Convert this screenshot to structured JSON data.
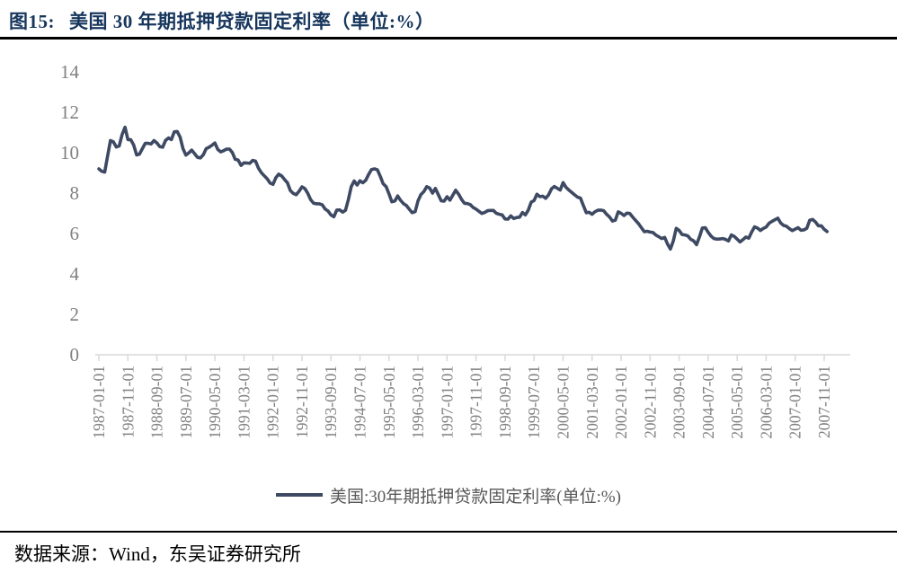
{
  "header": {
    "figure_prefix": "图15:",
    "title": "美国 30 年期抵押贷款固定利率（单位:%）",
    "title_color": "#17365D"
  },
  "legend": {
    "label": "美国:30年期抵押贷款固定利率(单位:%)",
    "swatch_color": "#3E4A63"
  },
  "footer": {
    "source": "数据来源：Wind，东吴证券研究所"
  },
  "chart_data": {
    "type": "line",
    "title": "美国 30 年期抵押贷款固定利率（单位:%）",
    "xlabel": "",
    "ylabel": "",
    "ylim": [
      0,
      14
    ],
    "yticks": [
      0,
      2,
      4,
      6,
      8,
      10,
      12,
      14
    ],
    "grid": false,
    "legend_position": "bottom",
    "line_color": "#3E4A63",
    "axis_text_color": "#808080",
    "axis_line_color": "#D9D9D9",
    "x_tick_labels": [
      "1987-01-01",
      "1987-11-01",
      "1988-09-01",
      "1989-07-01",
      "1990-05-01",
      "1991-03-01",
      "1992-01-01",
      "1992-11-01",
      "1993-09-01",
      "1994-07-01",
      "1995-05-01",
      "1996-03-01",
      "1997-01-01",
      "1997-11-01",
      "1998-09-01",
      "1999-07-01",
      "2000-05-01",
      "2001-03-01",
      "2002-01-01",
      "2002-11-01",
      "2003-09-01",
      "2004-07-01",
      "2005-05-01",
      "2006-03-01",
      "2007-01-01",
      "2007-11-01"
    ],
    "months_per_tick": 10,
    "series": [
      {
        "name": "美国:30年期抵押贷款固定利率(单位:%)",
        "start": "1987-01",
        "end": "2007-12",
        "frequency": "monthly",
        "values": [
          9.2,
          9.08,
          9.04,
          9.83,
          10.6,
          10.54,
          10.28,
          10.33,
          10.89,
          11.26,
          10.65,
          10.64,
          10.38,
          9.89,
          9.93,
          10.2,
          10.46,
          10.46,
          10.43,
          10.6,
          10.48,
          10.3,
          10.27,
          10.61,
          10.73,
          10.65,
          11.03,
          11.05,
          10.77,
          10.2,
          9.88,
          9.99,
          10.13,
          9.95,
          9.77,
          9.74,
          9.9,
          10.2,
          10.27,
          10.37,
          10.48,
          10.16,
          10.04,
          10.1,
          10.18,
          10.18,
          10.01,
          9.67,
          9.64,
          9.37,
          9.5,
          9.49,
          9.47,
          9.62,
          9.58,
          9.24,
          9.01,
          8.86,
          8.71,
          8.5,
          8.43,
          8.76,
          8.94,
          8.85,
          8.67,
          8.51,
          8.13,
          7.98,
          7.92,
          8.09,
          8.31,
          8.22,
          7.99,
          7.68,
          7.5,
          7.47,
          7.47,
          7.42,
          7.21,
          7.11,
          6.92,
          6.83,
          7.16,
          7.17,
          7.06,
          7.15,
          7.68,
          8.32,
          8.6,
          8.4,
          8.61,
          8.51,
          8.64,
          8.93,
          9.17,
          9.2,
          9.15,
          8.83,
          8.46,
          8.32,
          7.96,
          7.57,
          7.61,
          7.86,
          7.64,
          7.48,
          7.38,
          7.2,
          7.03,
          7.08,
          7.62,
          7.93,
          8.07,
          8.32,
          8.25,
          8.0,
          8.23,
          7.92,
          7.62,
          7.6,
          7.82,
          7.65,
          7.9,
          8.14,
          7.94,
          7.69,
          7.5,
          7.48,
          7.43,
          7.29,
          7.21,
          7.1,
          6.99,
          7.04,
          7.13,
          7.14,
          7.14,
          7.0,
          6.95,
          6.92,
          6.72,
          6.71,
          6.87,
          6.74,
          6.79,
          6.81,
          7.04,
          6.92,
          7.15,
          7.55,
          7.63,
          7.94,
          7.82,
          7.85,
          7.74,
          7.91,
          8.21,
          8.33,
          8.24,
          8.15,
          8.52,
          8.29,
          8.15,
          8.03,
          7.91,
          7.8,
          7.75,
          7.38,
          7.03,
          7.05,
          6.95,
          7.08,
          7.15,
          7.16,
          7.13,
          6.95,
          6.82,
          6.62,
          6.66,
          7.07,
          7.0,
          6.89,
          7.01,
          6.99,
          6.81,
          6.65,
          6.49,
          6.29,
          6.09,
          6.11,
          6.07,
          6.05,
          5.92,
          5.84,
          5.75,
          5.81,
          5.48,
          5.23,
          5.63,
          6.26,
          6.15,
          5.95,
          5.93,
          5.88,
          5.71,
          5.64,
          5.45,
          5.83,
          6.27,
          6.29,
          6.06,
          5.87,
          5.75,
          5.72,
          5.73,
          5.75,
          5.71,
          5.63,
          5.93,
          5.86,
          5.72,
          5.58,
          5.7,
          5.82,
          5.77,
          6.07,
          6.33,
          6.27,
          6.15,
          6.25,
          6.32,
          6.51,
          6.6,
          6.68,
          6.76,
          6.52,
          6.4,
          6.36,
          6.24,
          6.14,
          6.22,
          6.29,
          6.16,
          6.18,
          6.26,
          6.66,
          6.7,
          6.57,
          6.38,
          6.38,
          6.21,
          6.1
        ]
      }
    ]
  }
}
